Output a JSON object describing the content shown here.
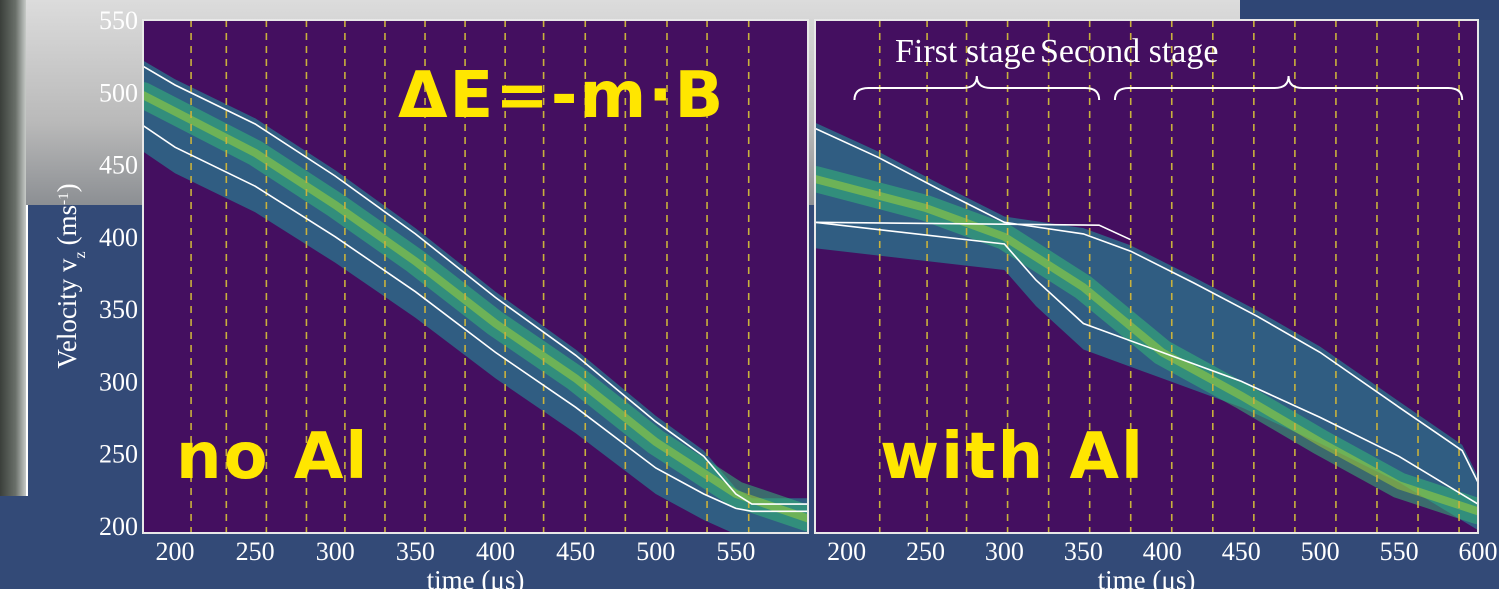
{
  "chart_data": [
    {
      "type": "heatmap",
      "panel_label": "no Al",
      "title": "ΔE=-m·B",
      "xlabel": "time (μs)",
      "ylabel": "Velocity v",
      "ylabel_subscript": "z",
      "ylabel_units": "(ms",
      "ylabel_units_sup": "-1",
      "ylabel_units_close": ")",
      "xlim": [
        180,
        595
      ],
      "ylim": [
        195,
        550
      ],
      "x_ticks": [
        200,
        250,
        300,
        350,
        400,
        450,
        500,
        550
      ],
      "y_ticks": [
        200,
        250,
        300,
        350,
        400,
        450,
        500,
        550
      ],
      "stage_switch_times": [
        210,
        232,
        257,
        282,
        306,
        331,
        356,
        381,
        406,
        430,
        456,
        481,
        507,
        532,
        558
      ],
      "upper_envelope": [
        [
          180,
          518
        ],
        [
          200,
          505
        ],
        [
          250,
          478
        ],
        [
          300,
          442
        ],
        [
          350,
          402
        ],
        [
          400,
          358
        ],
        [
          450,
          318
        ],
        [
          500,
          272
        ],
        [
          530,
          248
        ],
        [
          550,
          222
        ],
        [
          560,
          215
        ],
        [
          595,
          215
        ]
      ],
      "lower_envelope": [
        [
          180,
          477
        ],
        [
          200,
          462
        ],
        [
          250,
          435
        ],
        [
          300,
          400
        ],
        [
          350,
          362
        ],
        [
          400,
          320
        ],
        [
          450,
          282
        ],
        [
          500,
          240
        ],
        [
          530,
          222
        ],
        [
          550,
          212
        ],
        [
          560,
          210
        ],
        [
          595,
          210
        ]
      ],
      "density_center": [
        [
          180,
          498
        ],
        [
          250,
          458
        ],
        [
          300,
          422
        ],
        [
          350,
          383
        ],
        [
          400,
          340
        ],
        [
          450,
          302
        ],
        [
          500,
          258
        ],
        [
          550,
          222
        ],
        [
          595,
          205
        ]
      ]
    },
    {
      "type": "heatmap",
      "panel_label": "with Al",
      "xlabel": "time (μs)",
      "xlim": [
        180,
        600
      ],
      "ylim": [
        195,
        550
      ],
      "x_ticks": [
        200,
        250,
        300,
        350,
        400,
        450,
        500,
        550,
        600
      ],
      "stage_labels": [
        "First stage",
        "Second stage"
      ],
      "stage_ranges": [
        [
          205,
          360
        ],
        [
          370,
          590
        ]
      ],
      "stage_switch_times": [
        221,
        251,
        276,
        302,
        328,
        354,
        380,
        406,
        432,
        458,
        484,
        510,
        536,
        562,
        588
      ],
      "upper_envelope": [
        [
          180,
          475
        ],
        [
          220,
          455
        ],
        [
          260,
          432
        ],
        [
          300,
          410
        ],
        [
          350,
          402
        ],
        [
          380,
          390
        ],
        [
          420,
          368
        ],
        [
          460,
          345
        ],
        [
          500,
          320
        ],
        [
          550,
          282
        ],
        [
          590,
          252
        ],
        [
          600,
          230
        ]
      ],
      "flat_line": [
        [
          180,
          410
        ],
        [
          360,
          408
        ],
        [
          380,
          398
        ]
      ],
      "lower_envelope": [
        [
          180,
          410
        ],
        [
          300,
          395
        ],
        [
          320,
          370
        ],
        [
          350,
          340
        ],
        [
          400,
          320
        ],
        [
          450,
          300
        ],
        [
          500,
          275
        ],
        [
          550,
          248
        ],
        [
          600,
          215
        ]
      ],
      "density_center": [
        [
          180,
          440
        ],
        [
          250,
          420
        ],
        [
          300,
          400
        ],
        [
          350,
          365
        ],
        [
          400,
          320
        ],
        [
          450,
          290
        ],
        [
          500,
          258
        ],
        [
          550,
          228
        ],
        [
          600,
          210
        ]
      ]
    }
  ]
}
